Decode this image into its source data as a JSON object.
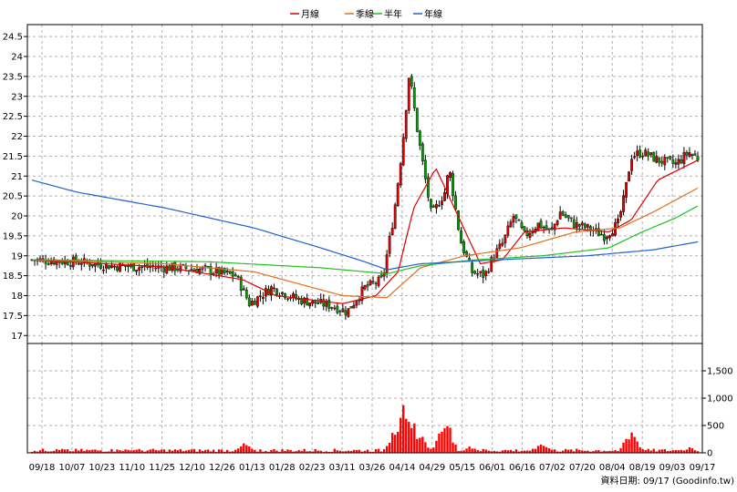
{
  "legend": [
    {
      "label": "月線",
      "color": "#e00000"
    },
    {
      "label": "季線",
      "color": "#e07020"
    },
    {
      "label": "半年",
      "color": "#20c020"
    },
    {
      "label": "年線",
      "color": "#2060d0"
    }
  ],
  "footer_text": "資料日期: 09/17 (Goodinfo.tw)",
  "chart_data": {
    "type": "candlestick",
    "price_axis": {
      "min": 16.8,
      "max": 24.8,
      "ticks": [
        "17",
        "17.5",
        "18",
        "18.5",
        "19",
        "19.5",
        "20",
        "20.5",
        "21",
        "21.5",
        "22",
        "22.5",
        "23",
        "23.5",
        "24",
        "24.5"
      ]
    },
    "volume_axis": {
      "min": 0,
      "max": 2000,
      "ticks": [
        "0",
        "500",
        "1,000",
        "1,500"
      ]
    },
    "x_ticks": [
      "09/18",
      "10/07",
      "10/23",
      "11/10",
      "11/25",
      "12/10",
      "12/26",
      "01/13",
      "01/28",
      "02/23",
      "03/11",
      "03/26",
      "04/14",
      "04/29",
      "05/15",
      "06/01",
      "06/16",
      "07/02",
      "07/20",
      "08/04",
      "08/19",
      "09/03",
      "09/17"
    ],
    "session_count": 243,
    "price_anchors": [
      [
        0,
        18.9
      ],
      [
        20,
        18.85
      ],
      [
        35,
        18.75
      ],
      [
        50,
        18.72
      ],
      [
        65,
        18.7
      ],
      [
        78,
        18.65
      ],
      [
        92,
        18.5
      ],
      [
        98,
        17.8
      ],
      [
        108,
        18.2
      ],
      [
        120,
        17.9
      ],
      [
        135,
        17.75
      ],
      [
        142,
        17.6
      ],
      [
        150,
        18.2
      ],
      [
        158,
        18.4
      ],
      [
        163,
        20.0
      ],
      [
        167,
        21.8
      ],
      [
        170,
        23.6
      ],
      [
        174,
        22.0
      ],
      [
        180,
        20.0
      ],
      [
        186,
        20.6
      ],
      [
        188,
        21.2
      ],
      [
        193,
        19.4
      ],
      [
        198,
        18.6
      ],
      [
        204,
        18.5
      ],
      [
        208,
        19.0
      ],
      [
        212,
        19.3
      ],
      [
        217,
        20.0
      ],
      [
        222,
        19.5
      ],
      [
        228,
        19.8
      ],
      [
        234,
        19.6
      ],
      [
        238,
        20.1
      ],
      [
        244,
        19.8
      ],
      [
        250,
        19.7
      ],
      [
        258,
        19.5
      ],
      [
        264,
        19.8
      ],
      [
        267,
        20.5
      ],
      [
        270,
        21.5
      ],
      [
        275,
        21.6
      ],
      [
        282,
        21.4
      ],
      [
        290,
        21.3
      ],
      [
        296,
        21.6
      ],
      [
        300,
        21.45
      ]
    ],
    "volume_spikes": [
      [
        12,
        80
      ],
      [
        40,
        60
      ],
      [
        96,
        180
      ],
      [
        163,
        380
      ],
      [
        168,
        950
      ],
      [
        170,
        820
      ],
      [
        175,
        380
      ],
      [
        186,
        750
      ],
      [
        198,
        130
      ],
      [
        230,
        220
      ],
      [
        270,
        450
      ],
      [
        296,
        100
      ]
    ],
    "ma_series": [
      {
        "name": "月線",
        "points": [
          [
            0,
            18.9
          ],
          [
            60,
            18.72
          ],
          [
            95,
            18.4
          ],
          [
            110,
            18.0
          ],
          [
            140,
            17.8
          ],
          [
            155,
            18.0
          ],
          [
            165,
            18.6
          ],
          [
            172,
            20.2
          ],
          [
            182,
            21.2
          ],
          [
            192,
            20.0
          ],
          [
            202,
            18.8
          ],
          [
            212,
            18.9
          ],
          [
            222,
            19.6
          ],
          [
            240,
            19.7
          ],
          [
            260,
            19.6
          ],
          [
            270,
            19.9
          ],
          [
            282,
            20.9
          ],
          [
            300,
            21.4
          ]
        ]
      },
      {
        "name": "季線",
        "points": [
          [
            0,
            18.9
          ],
          [
            60,
            18.8
          ],
          [
            100,
            18.6
          ],
          [
            140,
            18.0
          ],
          [
            160,
            17.95
          ],
          [
            175,
            18.7
          ],
          [
            195,
            19.0
          ],
          [
            220,
            19.2
          ],
          [
            245,
            19.6
          ],
          [
            265,
            19.7
          ],
          [
            280,
            20.1
          ],
          [
            300,
            20.7
          ]
        ]
      },
      {
        "name": "半年",
        "points": [
          [
            0,
            18.9
          ],
          [
            80,
            18.85
          ],
          [
            130,
            18.7
          ],
          [
            160,
            18.55
          ],
          [
            175,
            18.75
          ],
          [
            200,
            18.9
          ],
          [
            230,
            19.0
          ],
          [
            260,
            19.2
          ],
          [
            275,
            19.6
          ],
          [
            290,
            19.95
          ],
          [
            300,
            20.25
          ]
        ]
      },
      {
        "name": "年線",
        "points": [
          [
            0,
            20.9
          ],
          [
            20,
            20.6
          ],
          [
            60,
            20.2
          ],
          [
            100,
            19.7
          ],
          [
            130,
            19.2
          ],
          [
            150,
            18.85
          ],
          [
            160,
            18.65
          ],
          [
            175,
            18.8
          ],
          [
            210,
            18.9
          ],
          [
            250,
            19.0
          ],
          [
            280,
            19.15
          ],
          [
            300,
            19.35
          ]
        ]
      }
    ]
  }
}
